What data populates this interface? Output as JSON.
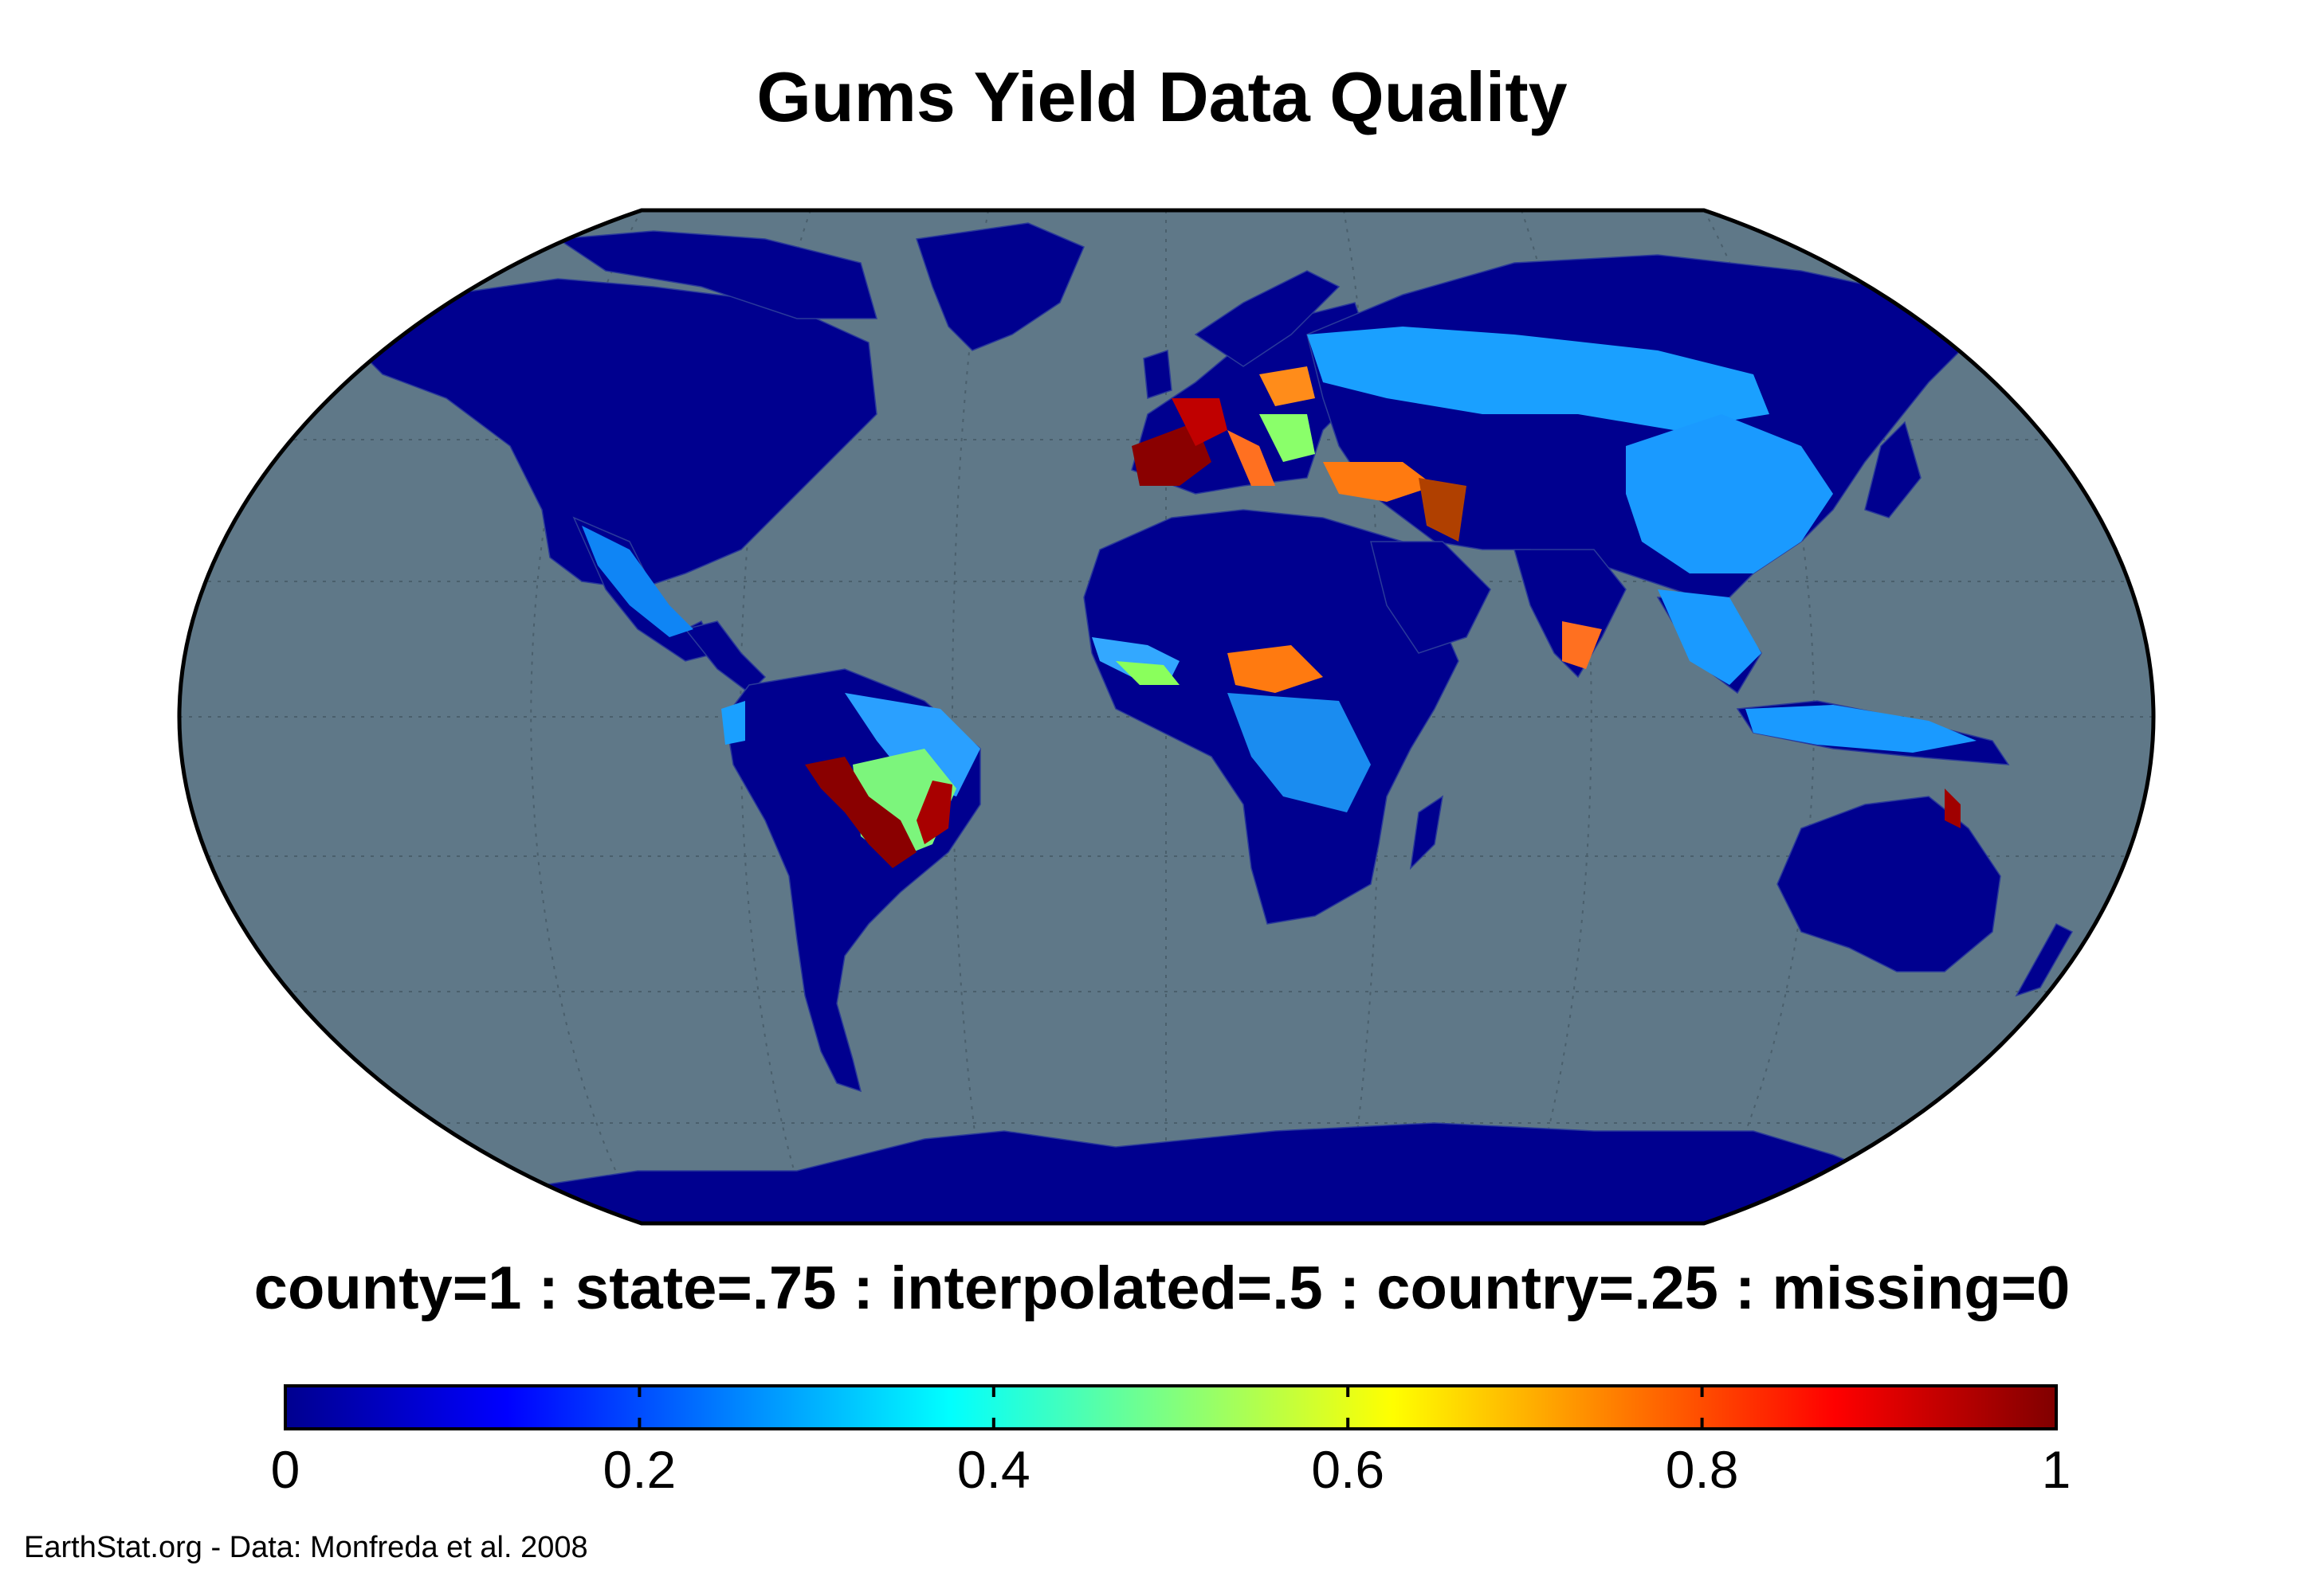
{
  "title": "Gums Yield Data Quality",
  "legend": {
    "caption": "county=1 : state=.75 : interpolated=.5 : country=.25 : missing=0",
    "ticks": [
      "0",
      "0.2",
      "0.4",
      "0.6",
      "0.8",
      "1"
    ],
    "range": [
      0,
      1
    ],
    "colormap": "jet"
  },
  "credit": "EarthStat.org - Data: Monfreda et al. 2008",
  "map": {
    "projection": "robinson",
    "ocean_color": "#5f7888",
    "land_default_color": "#00008f",
    "regions": [
      {
        "name": "north-america",
        "value": 0
      },
      {
        "name": "greenland",
        "value": 0
      },
      {
        "name": "mexico",
        "value": 0.28
      },
      {
        "name": "south-america",
        "value": 0
      },
      {
        "name": "brazil-interior",
        "value": 0.55
      },
      {
        "name": "brazil-state-patches",
        "value": 0.95
      },
      {
        "name": "africa",
        "value": 0
      },
      {
        "name": "west-africa-sahel",
        "value": 0.35
      },
      {
        "name": "nigeria-patch",
        "value": 0.78
      },
      {
        "name": "congo-basin",
        "value": 0.25
      },
      {
        "name": "europe",
        "value": 0
      },
      {
        "name": "spain-france",
        "value": 1
      },
      {
        "name": "central-europe",
        "value": 0.5
      },
      {
        "name": "russia",
        "value": 0.25
      },
      {
        "name": "china",
        "value": 0.25
      },
      {
        "name": "india-south",
        "value": 0.75
      },
      {
        "name": "southeast-asia",
        "value": 0.25
      },
      {
        "name": "turkey-iran",
        "value": 0.78
      },
      {
        "name": "australia",
        "value": 0
      },
      {
        "name": "australia-east",
        "value": 1
      },
      {
        "name": "antarctica",
        "value": 0
      }
    ]
  }
}
